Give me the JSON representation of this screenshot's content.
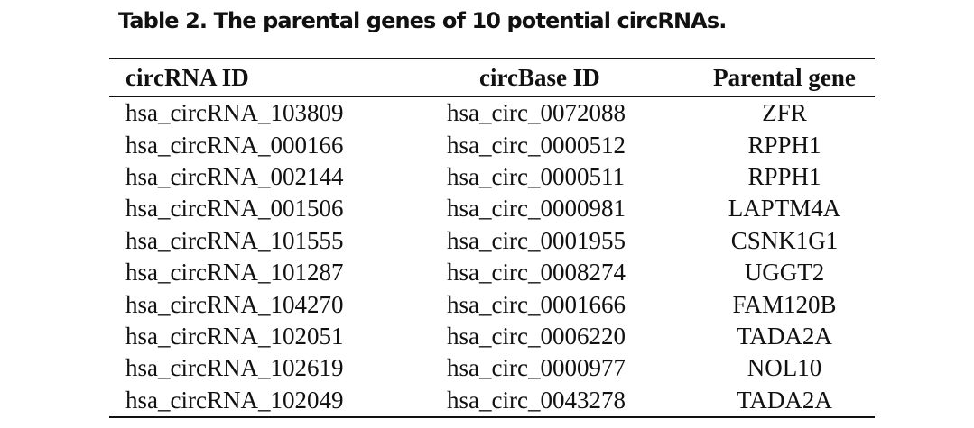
{
  "caption": "Table 2. The parental genes of 10 potential circRNAs.",
  "table": {
    "headers": [
      "circRNA ID",
      "circBase ID",
      "Parental gene"
    ],
    "rows": [
      [
        "hsa_circRNA_103809",
        "hsa_circ_0072088",
        "ZFR"
      ],
      [
        "hsa_circRNA_000166",
        "hsa_circ_0000512",
        "RPPH1"
      ],
      [
        "hsa_circRNA_002144",
        "hsa_circ_0000511",
        "RPPH1"
      ],
      [
        "hsa_circRNA_001506",
        "hsa_circ_0000981",
        "LAPTM4A"
      ],
      [
        "hsa_circRNA_101555",
        "hsa_circ_0001955",
        "CSNK1G1"
      ],
      [
        "hsa_circRNA_101287",
        "hsa_circ_0008274",
        "UGGT2"
      ],
      [
        "hsa_circRNA_104270",
        "hsa_circ_0001666",
        "FAM120B"
      ],
      [
        "hsa_circRNA_102051",
        "hsa_circ_0006220",
        "TADA2A"
      ],
      [
        "hsa_circRNA_102619",
        "hsa_circ_0000977",
        "NOL10"
      ],
      [
        "hsa_circRNA_102049",
        "hsa_circ_0043278",
        "TADA2A"
      ]
    ]
  }
}
